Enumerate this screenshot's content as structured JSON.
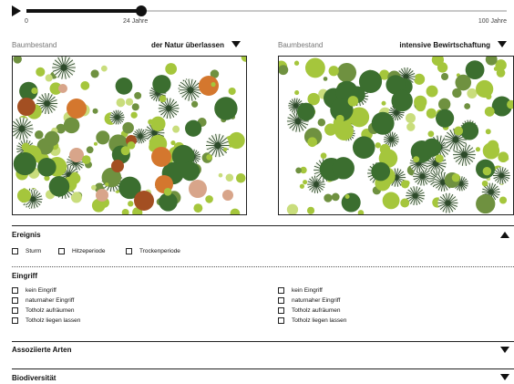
{
  "timeline": {
    "start_label": "0",
    "current_label": "24 Jahre",
    "end_label": "100 Jahre",
    "current_years": 24,
    "max_years": 100
  },
  "panels": [
    {
      "label": "Baumbestand",
      "selected": "der Natur überlassen"
    },
    {
      "label": "Baumbestand",
      "selected": "intensive Bewirtschaftung"
    }
  ],
  "sections": {
    "ereignis": {
      "title": "Ereignis",
      "options": [
        "Sturm",
        "Hitzeperiode",
        "Trockenperiode"
      ]
    },
    "eingriff": {
      "title": "Eingriff",
      "options_left": [
        "kein Eingriff",
        "naturnaher Eingriff",
        "Totholz aufräumen",
        "Totholz liegen lassen"
      ],
      "options_right": [
        "kein Eingriff",
        "naturnaher Eingriff",
        "Totholz aufräumen",
        "Totholz liegen lassen"
      ]
    },
    "assoziierte_arten": {
      "title": "Assoziierte Arten"
    },
    "biodiversitaet": {
      "title": "Biodiversität"
    }
  },
  "colors": {
    "dark_green": "#3b6e2f",
    "mid_green": "#6f9140",
    "light_green": "#a5c63c",
    "pale_green": "#c9dd7c",
    "orange": "#d4772e",
    "rust": "#a34f22",
    "pink": "#d8a58a",
    "spruce": "#2d4a2a"
  }
}
